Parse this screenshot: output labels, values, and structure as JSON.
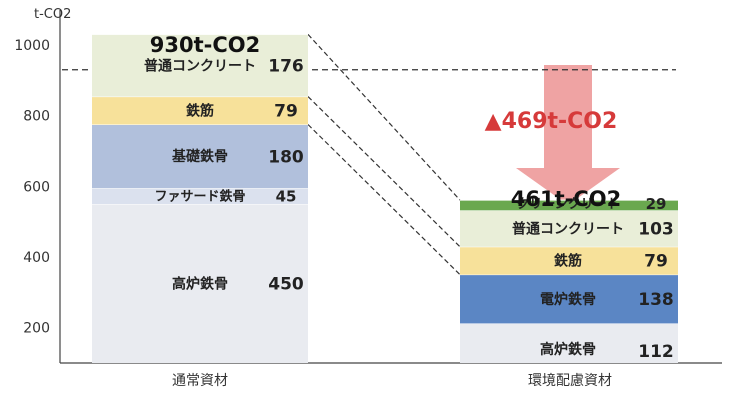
{
  "chart_data": {
    "type": "bar",
    "stacked": true,
    "y_unit_label": "t-CO2",
    "ylim": [
      100,
      1050
    ],
    "y_ticks": [
      200,
      400,
      600,
      800,
      1000
    ],
    "categories": [
      "通常資材",
      "環境配慮資材"
    ],
    "bars": [
      {
        "category": "通常資材",
        "total_label": "930t-CO2",
        "segments": [
          {
            "name": "高炉鉄骨",
            "value": "450",
            "amount": 450,
            "color": "#e9ebf0"
          },
          {
            "name": "ファサード鉄骨",
            "value": "45",
            "amount": 45,
            "color": "#dbe1ee"
          },
          {
            "name": "基礎鉄骨",
            "value": "180",
            "amount": 180,
            "color": "#b1c0dc"
          },
          {
            "name": "鉄筋",
            "value": "79",
            "amount": 79,
            "color": "#f7e19a"
          },
          {
            "name": "普通コンクリート",
            "value": "176",
            "amount": 176,
            "color": "#e9eed8"
          }
        ]
      },
      {
        "category": "環境配慮資材",
        "total_label": "461t-CO2",
        "segments": [
          {
            "name": "高炉鉄骨",
            "value": "112",
            "amount": 112,
            "color": "#e9ebf0"
          },
          {
            "name": "電炉鉄骨",
            "value": "138",
            "amount": 138,
            "color": "#5b86c4"
          },
          {
            "name": "鉄筋",
            "value": "79",
            "amount": 79,
            "color": "#f7e19a"
          },
          {
            "name": "普通コンクリート",
            "value": "103",
            "amount": 103,
            "color": "#e9eed8"
          },
          {
            "name": "クリーンクリート",
            "value": "29",
            "amount": 29,
            "color": "#6aa84f"
          }
        ]
      }
    ],
    "reference_line": 930,
    "reduction_label": "▲469t-CO2",
    "grid": false
  },
  "colors": {
    "reduction_text": "#d63a3a",
    "arrow_fill": "#efa3a3",
    "axis": "#444444"
  }
}
